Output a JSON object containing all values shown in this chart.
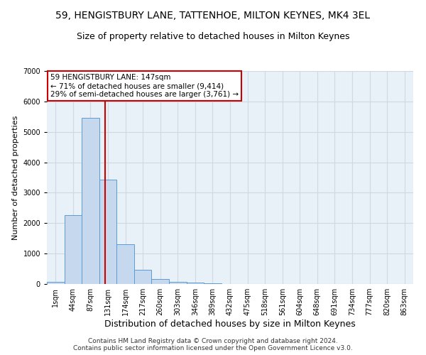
{
  "title": "59, HENGISTBURY LANE, TATTENHOE, MILTON KEYNES, MK4 3EL",
  "subtitle": "Size of property relative to detached houses in Milton Keynes",
  "xlabel": "Distribution of detached houses by size in Milton Keynes",
  "ylabel": "Number of detached properties",
  "bar_color": "#c5d8ee",
  "bar_edge_color": "#5b9bd5",
  "categories": [
    "1sqm",
    "44sqm",
    "87sqm",
    "131sqm",
    "174sqm",
    "217sqm",
    "260sqm",
    "303sqm",
    "346sqm",
    "389sqm",
    "432sqm",
    "475sqm",
    "518sqm",
    "561sqm",
    "604sqm",
    "648sqm",
    "691sqm",
    "734sqm",
    "777sqm",
    "820sqm",
    "863sqm"
  ],
  "values": [
    75,
    2270,
    5470,
    3430,
    1310,
    460,
    155,
    80,
    55,
    35,
    10,
    0,
    0,
    0,
    0,
    0,
    0,
    0,
    0,
    0,
    0
  ],
  "vline_color": "#cc0000",
  "vline_pos": 2.85,
  "annotation_line1": "59 HENGISTBURY LANE: 147sqm",
  "annotation_line2": "← 71% of detached houses are smaller (9,414)",
  "annotation_line3": "29% of semi-detached houses are larger (3,761) →",
  "annotation_box_color": "#ffffff",
  "annotation_box_edge_color": "#cc0000",
  "ylim": [
    0,
    7000
  ],
  "yticks": [
    0,
    1000,
    2000,
    3000,
    4000,
    5000,
    6000,
    7000
  ],
  "grid_color": "#d0d8e4",
  "bg_color": "#e8f0f8",
  "footer_line1": "Contains HM Land Registry data © Crown copyright and database right 2024.",
  "footer_line2": "Contains public sector information licensed under the Open Government Licence v3.0.",
  "title_fontsize": 10,
  "subtitle_fontsize": 9,
  "xlabel_fontsize": 9,
  "ylabel_fontsize": 8,
  "tick_fontsize": 7,
  "annotation_fontsize": 7.5,
  "footer_fontsize": 6.5
}
